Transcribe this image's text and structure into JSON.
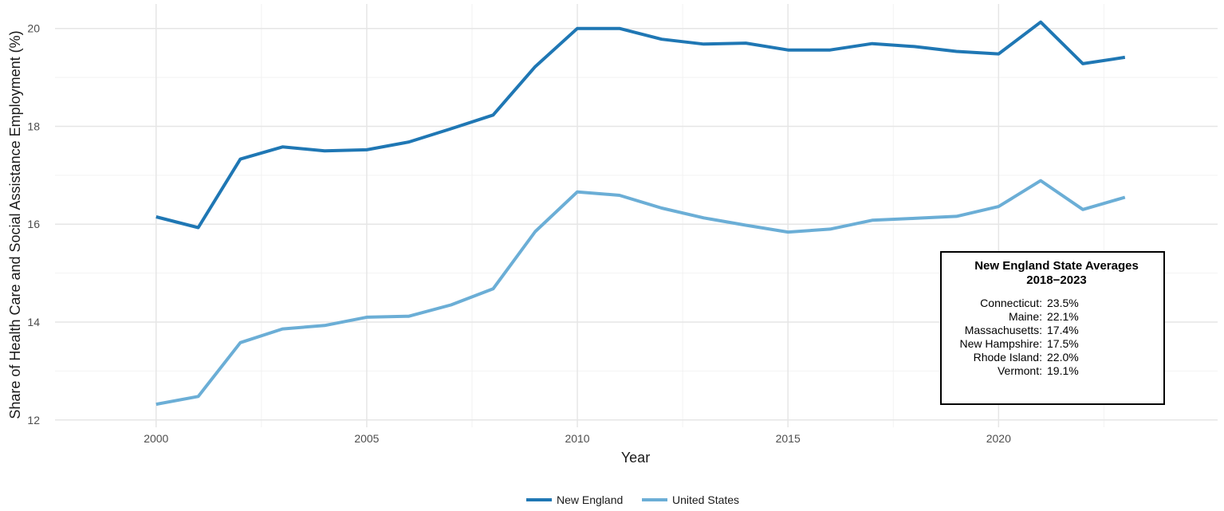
{
  "chart_data": {
    "type": "line",
    "title": "",
    "xlabel": "Year",
    "ylabel": "Share of Health Care and Social Assistance Employment (%)",
    "xlim": [
      1997.6,
      2025.2
    ],
    "ylim": [
      11.85,
      20.5
    ],
    "x_ticks": [
      2000,
      2005,
      2010,
      2015,
      2020
    ],
    "y_ticks": [
      12,
      14,
      16,
      18,
      20
    ],
    "grid": true,
    "legend_position": "bottom",
    "x": [
      2000,
      2001,
      2002,
      2003,
      2004,
      2005,
      2006,
      2007,
      2008,
      2009,
      2010,
      2011,
      2012,
      2013,
      2014,
      2015,
      2016,
      2017,
      2018,
      2019,
      2020,
      2021,
      2022,
      2023
    ],
    "series": [
      {
        "name": "New England",
        "color": "#1f77b4",
        "values": [
          16.15,
          15.93,
          17.33,
          17.58,
          17.5,
          17.52,
          17.68,
          17.95,
          18.23,
          19.22,
          20.0,
          20.0,
          19.78,
          19.68,
          19.7,
          19.56,
          19.56,
          19.69,
          19.63,
          19.53,
          19.48,
          20.13,
          19.28,
          19.41
        ]
      },
      {
        "name": "United States",
        "color": "#6baed6",
        "values": [
          12.32,
          12.48,
          13.58,
          13.86,
          13.93,
          14.1,
          14.12,
          14.35,
          14.68,
          15.85,
          16.66,
          16.59,
          16.33,
          16.13,
          15.98,
          15.84,
          15.9,
          16.08,
          16.12,
          16.16,
          16.36,
          16.89,
          16.3,
          16.55
        ]
      }
    ],
    "annotation": {
      "title_line1": "New England State Averages",
      "title_line2": "2018−2023",
      "rows": [
        {
          "state": "Connecticut:",
          "value": "23.5%"
        },
        {
          "state": "Maine:",
          "value": "22.1%"
        },
        {
          "state": "Massachusetts:",
          "value": "17.4%"
        },
        {
          "state": "New Hampshire:",
          "value": "17.5%"
        },
        {
          "state": "Rhode Island:",
          "value": "22.0%"
        },
        {
          "state": "Vermont:",
          "value": "19.1%"
        }
      ]
    }
  }
}
